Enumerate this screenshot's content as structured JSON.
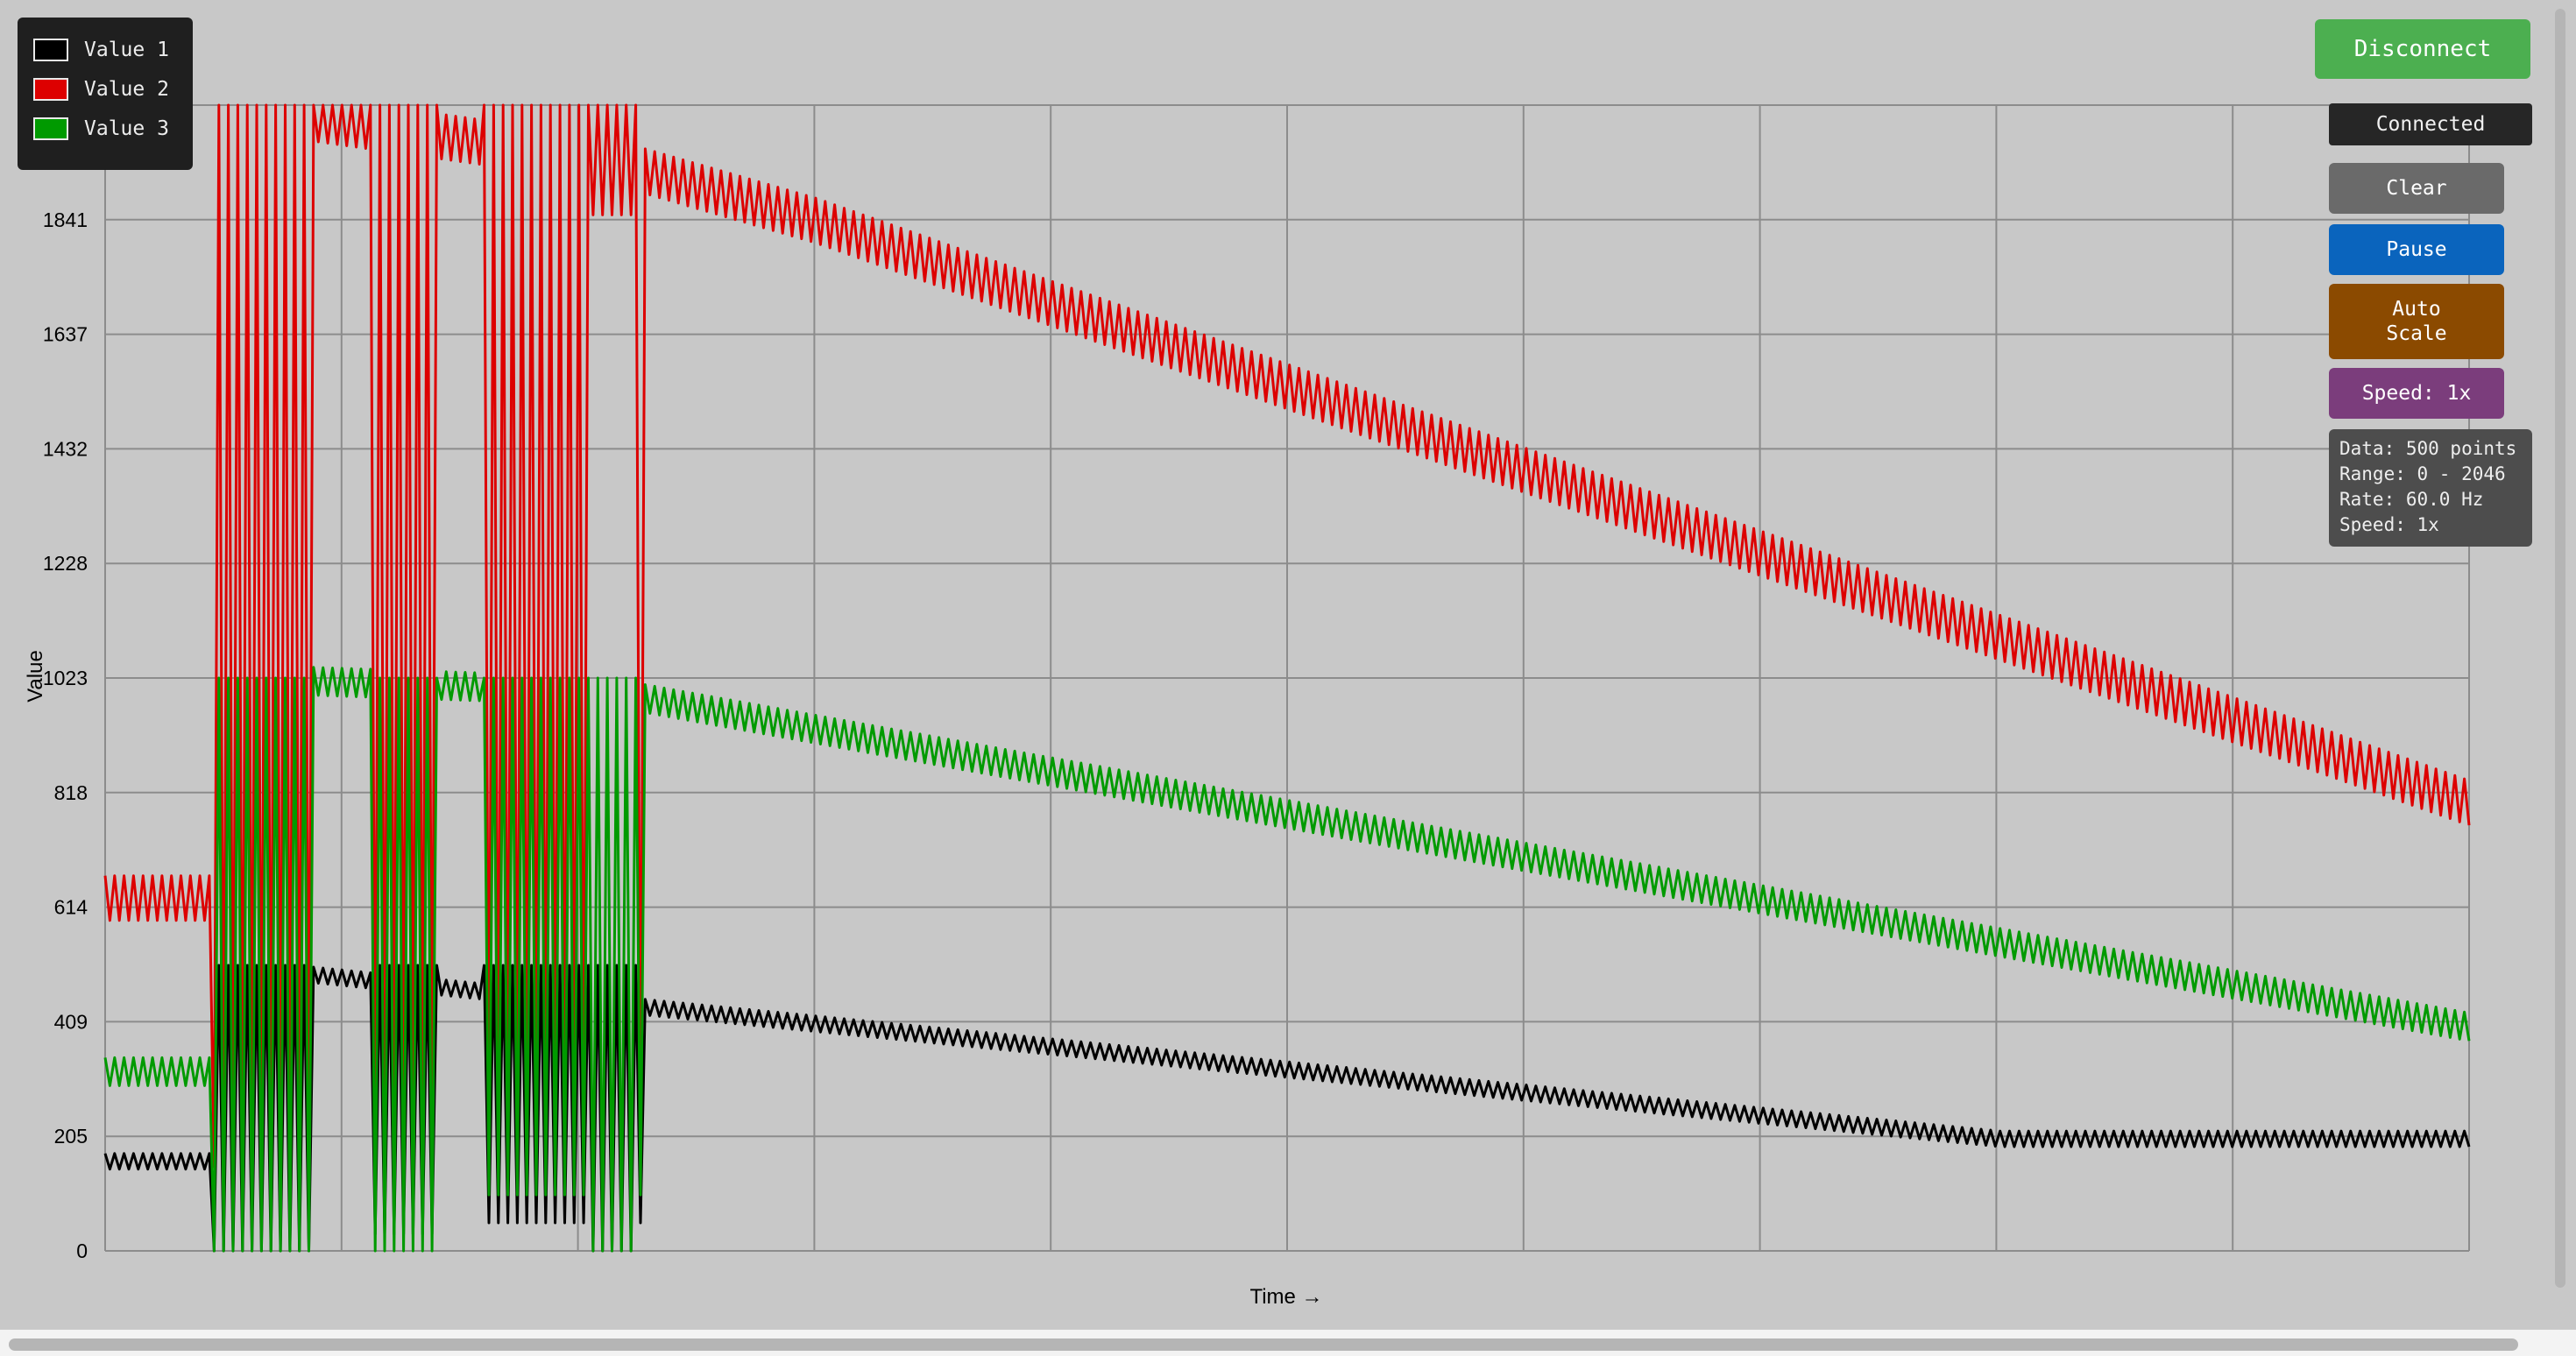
{
  "controls": {
    "disconnect_label": "Disconnect",
    "status_label": "Connected",
    "clear_label": "Clear",
    "pause_label": "Pause",
    "autoscale_line1": "Auto",
    "autoscale_line2": "Scale",
    "speed_label": "Speed: 1x"
  },
  "info": {
    "data": "Data: 500 points",
    "range": "Range: 0 - 2046",
    "rate": "Rate: 60.0 Hz",
    "speed": "Speed: 1x"
  },
  "colors": {
    "value1": "#000000",
    "value2": "#dd0000",
    "value3": "#009a00",
    "disconnect": "#4caf50",
    "pause": "#0a64bd",
    "autoscale": "#8b4a00",
    "speed": "#7b3d7c"
  },
  "chart_data": {
    "type": "line",
    "title": "",
    "xlabel": "Time →",
    "ylabel": "Value",
    "ylim": [
      0,
      2046
    ],
    "yticks": [
      "0",
      "205",
      "409",
      "614",
      "818",
      "1023",
      "1228",
      "1432",
      "1637",
      "1841",
      "2046"
    ],
    "x_points": 500,
    "grid": true,
    "legend_position": "top-left",
    "series": [
      {
        "name": "Value 1",
        "color": "#000000",
        "keypoints": [
          [
            0,
            160
          ],
          [
            22,
            160
          ],
          [
            23,
            510
          ],
          [
            400,
            200
          ],
          [
            499,
            200
          ]
        ],
        "ripple": 14,
        "bursts": [
          [
            23,
            43,
            0,
            510
          ],
          [
            57,
            70,
            30,
            510
          ],
          [
            80,
            113,
            50,
            510
          ],
          [
            102,
            112,
            0,
            510
          ]
        ]
      },
      {
        "name": "Value 2",
        "color": "#dd0000",
        "keypoints": [
          [
            0,
            630
          ],
          [
            22,
            630
          ],
          [
            23,
            2046
          ],
          [
            105,
            1950
          ],
          [
            150,
            1840
          ],
          [
            499,
            800
          ]
        ],
        "ripple": 40,
        "bursts": [
          [
            23,
            43,
            150,
            2046
          ],
          [
            57,
            70,
            200,
            2046
          ],
          [
            80,
            113,
            180,
            2046
          ],
          [
            102,
            112,
            1850,
            2046
          ]
        ]
      },
      {
        "name": "Value 3",
        "color": "#009a00",
        "keypoints": [
          [
            0,
            320
          ],
          [
            22,
            320
          ],
          [
            23,
            1023
          ],
          [
            105,
            1000
          ],
          [
            499,
            400
          ]
        ],
        "ripple": 25,
        "bursts": [
          [
            23,
            43,
            0,
            1023
          ],
          [
            57,
            70,
            0,
            1023
          ],
          [
            80,
            113,
            100,
            1023
          ],
          [
            102,
            112,
            0,
            1023
          ]
        ]
      }
    ]
  }
}
